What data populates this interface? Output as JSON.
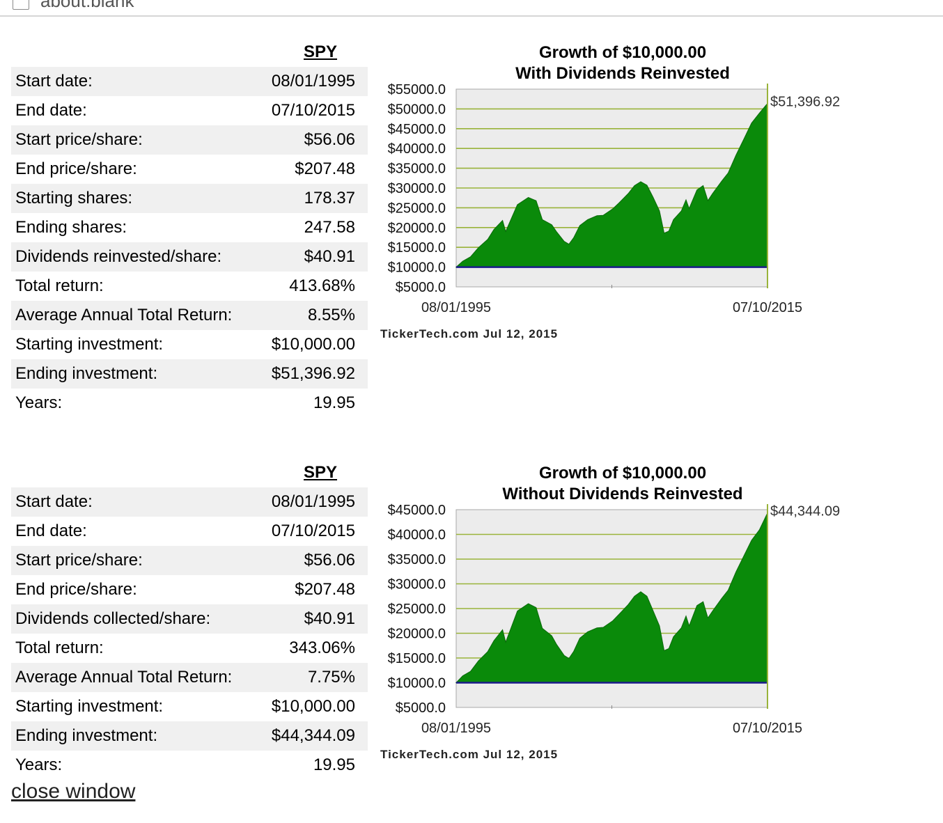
{
  "browser": {
    "url": "about:blank"
  },
  "sections": [
    {
      "symbol": "SPY",
      "rows": [
        {
          "label": "Start date:",
          "value": "08/01/1995"
        },
        {
          "label": "End date:",
          "value": "07/10/2015"
        },
        {
          "label": "Start price/share:",
          "value": "$56.06"
        },
        {
          "label": "End price/share:",
          "value": "$207.48"
        },
        {
          "label": "Starting shares:",
          "value": "178.37"
        },
        {
          "label": "Ending shares:",
          "value": "247.58"
        },
        {
          "label": "Dividends reinvested/share:",
          "value": "$40.91"
        },
        {
          "label": "Total return:",
          "value": "413.68%"
        },
        {
          "label": "Average Annual Total Return:",
          "value": "8.55%"
        },
        {
          "label": "Starting investment:",
          "value": "$10,000.00"
        },
        {
          "label": "Ending investment:",
          "value": "$51,396.92"
        },
        {
          "label": "Years:",
          "value": "19.95"
        }
      ]
    },
    {
      "symbol": "SPY",
      "rows": [
        {
          "label": "Start date:",
          "value": "08/01/1995"
        },
        {
          "label": "End date:",
          "value": "07/10/2015"
        },
        {
          "label": "Start price/share:",
          "value": "$56.06"
        },
        {
          "label": "End price/share:",
          "value": "$207.48"
        },
        {
          "label": "Dividends collected/share:",
          "value": "$40.91"
        },
        {
          "label": "Total return:",
          "value": "343.06%"
        },
        {
          "label": "Average Annual Total Return:",
          "value": "7.75%"
        },
        {
          "label": "Starting investment:",
          "value": "$10,000.00"
        },
        {
          "label": "Ending investment:",
          "value": "$44,344.09"
        },
        {
          "label": "Years:",
          "value": "19.95"
        }
      ]
    }
  ],
  "chart_data": [
    {
      "type": "area",
      "title": "Growth of $10,000.00",
      "subtitle": "With Dividends Reinvested",
      "x_start_label": "08/01/1995",
      "x_end_label": "07/10/2015",
      "ylim": [
        5000,
        55000
      ],
      "y_tick_labels": [
        "$55000.0",
        "$50000.0",
        "$45000.0",
        "$40000.0",
        "$35000.0",
        "$30000.0",
        "$25000.0",
        "$20000.0",
        "$15000.0",
        "$10000.0",
        "$5000.0"
      ],
      "baseline": 10000,
      "end_value_label": "$51,396.92",
      "source": "TickerTech.com  Jul 12, 2015",
      "x": [
        1995.58,
        1996.0,
        1996.5,
        1997.0,
        1997.6,
        1998.0,
        1998.55,
        1998.75,
        1999.5,
        2000.2,
        2000.7,
        2001.1,
        2001.7,
        2002.0,
        2002.5,
        2002.8,
        2003.1,
        2003.5,
        2004.0,
        2004.6,
        2005.0,
        2005.6,
        2006.0,
        2006.6,
        2007.0,
        2007.4,
        2007.8,
        2008.2,
        2008.6,
        2008.9,
        2009.2,
        2009.5,
        2010.0,
        2010.3,
        2010.5,
        2011.0,
        2011.4,
        2011.7,
        2012.0,
        2012.6,
        2013.0,
        2013.5,
        2014.0,
        2014.5,
        2015.0,
        2015.52
      ],
      "values": [
        10000,
        11500,
        12600,
        14900,
        17000,
        19500,
        21800,
        19000,
        25800,
        27600,
        26800,
        22000,
        20700,
        19000,
        16500,
        15800,
        17400,
        20500,
        22000,
        23000,
        23100,
        24700,
        26200,
        28600,
        30600,
        31600,
        30700,
        27600,
        24200,
        18600,
        19100,
        22000,
        24200,
        27000,
        24800,
        29500,
        30600,
        26800,
        28600,
        31800,
        33800,
        38300,
        42300,
        46400,
        48900,
        51396.92
      ]
    },
    {
      "type": "area",
      "title": "Growth of $10,000.00",
      "subtitle": "Without Dividends Reinvested",
      "x_start_label": "08/01/1995",
      "x_end_label": "07/10/2015",
      "ylim": [
        5000,
        45000
      ],
      "y_tick_labels": [
        "$45000.0",
        "$40000.0",
        "$35000.0",
        "$30000.0",
        "$25000.0",
        "$20000.0",
        "$15000.0",
        "$10000.0",
        "$5000.0"
      ],
      "baseline": 10000,
      "end_value_label": "$44,344.09",
      "source": "TickerTech.com  Jul 12, 2015",
      "x": [
        1995.58,
        1996.0,
        1996.5,
        1997.0,
        1997.6,
        1998.0,
        1998.55,
        1998.75,
        1999.5,
        2000.2,
        2000.7,
        2001.1,
        2001.7,
        2002.0,
        2002.5,
        2002.8,
        2003.1,
        2003.5,
        2004.0,
        2004.6,
        2005.0,
        2005.6,
        2006.0,
        2006.6,
        2007.0,
        2007.4,
        2007.8,
        2008.2,
        2008.6,
        2008.9,
        2009.2,
        2009.5,
        2010.0,
        2010.3,
        2010.5,
        2011.0,
        2011.4,
        2011.7,
        2012.0,
        2012.6,
        2013.0,
        2013.5,
        2014.0,
        2014.5,
        2015.0,
        2015.52
      ],
      "values": [
        10000,
        11400,
        12300,
        14400,
        16300,
        18500,
        20700,
        18200,
        24500,
        26000,
        25200,
        21000,
        19500,
        17800,
        15500,
        14900,
        16300,
        19000,
        20300,
        21100,
        21200,
        22500,
        23800,
        25800,
        27500,
        28400,
        27500,
        24500,
        21500,
        16500,
        16900,
        19300,
        21100,
        23500,
        21500,
        25600,
        26400,
        23100,
        24500,
        27100,
        28700,
        32400,
        35600,
        38800,
        40900,
        44344.09
      ]
    }
  ],
  "footer": {
    "close_label": "close window"
  }
}
